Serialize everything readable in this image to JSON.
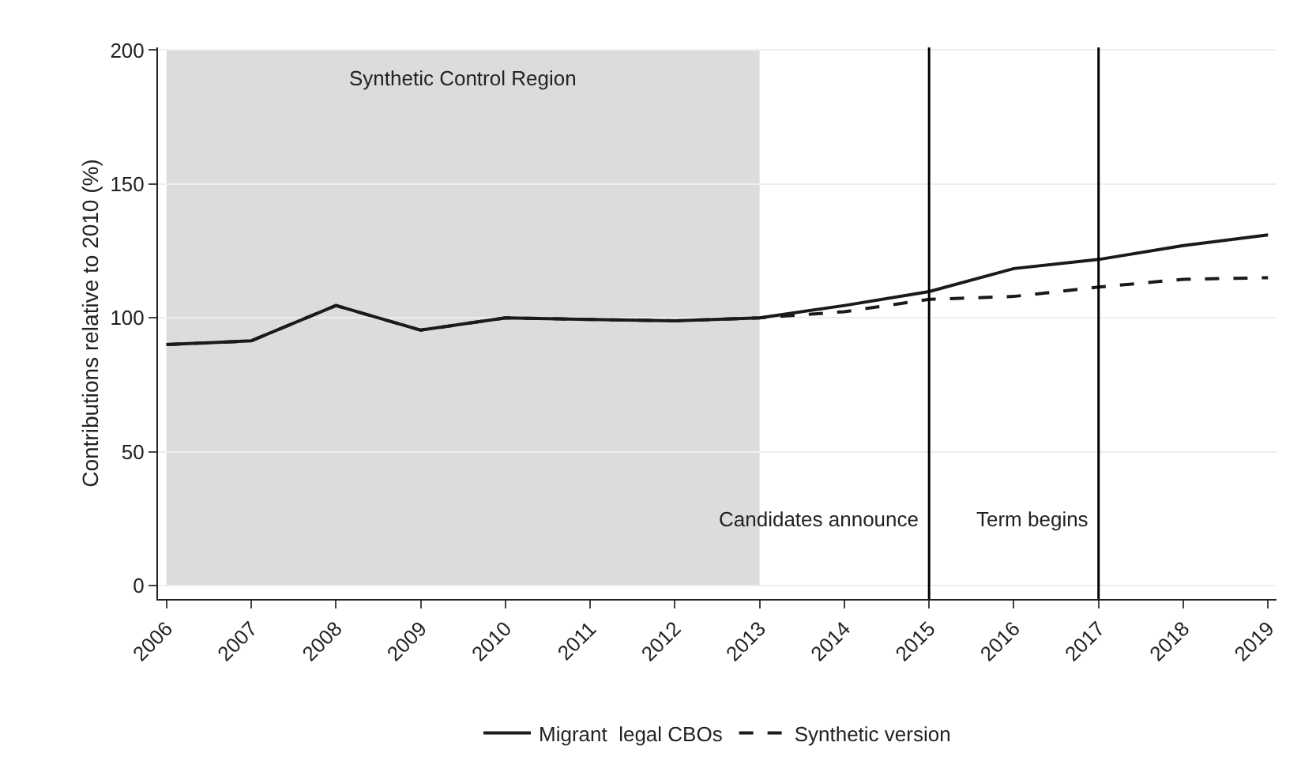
{
  "chart_data": {
    "type": "line",
    "ylabel": "Contributions relative to 2010 (%)",
    "x": [
      2006,
      2007,
      2008,
      2009,
      2010,
      2011,
      2012,
      2013,
      2014,
      2015,
      2016,
      2017,
      2018,
      2019
    ],
    "series": [
      {
        "name": "Migrant  legal CBOs",
        "color": "#1a1a1a",
        "line_style": "solid",
        "values": [
          90,
          91.4,
          104.6,
          95.4,
          100,
          99.4,
          98.9,
          100,
          104.6,
          109.8,
          118.4,
          121.8,
          127,
          131
        ]
      },
      {
        "name": "Synthetic version",
        "color": "#1a1a1a",
        "line_style": "dashed",
        "values": [
          90,
          91.4,
          104.6,
          95.4,
          100,
          99.4,
          98.9,
          100,
          102.3,
          106.9,
          108,
          111.5,
          114.4,
          115
        ]
      }
    ],
    "xlim": [
      2005.9,
      2019.1
    ],
    "xticks": [
      2006,
      2007,
      2008,
      2009,
      2010,
      2011,
      2012,
      2013,
      2014,
      2015,
      2016,
      2017,
      2018,
      2019
    ],
    "ylim": [
      -5,
      201
    ],
    "yticks": [
      0,
      50,
      100,
      150,
      200
    ],
    "grid": "y",
    "legend": "bottom",
    "marker": "none",
    "bands": [
      {
        "axis": "x",
        "from": 2006,
        "to": 2013,
        "label": "Synthetic Control Region",
        "color": "#dcdcdc"
      }
    ],
    "ref_lines": [
      {
        "axis": "x",
        "value": 2015,
        "label": "Candidates announce",
        "color": "#000000"
      },
      {
        "axis": "x",
        "value": 2017,
        "label": "Term begins",
        "color": "#000000"
      }
    ]
  }
}
